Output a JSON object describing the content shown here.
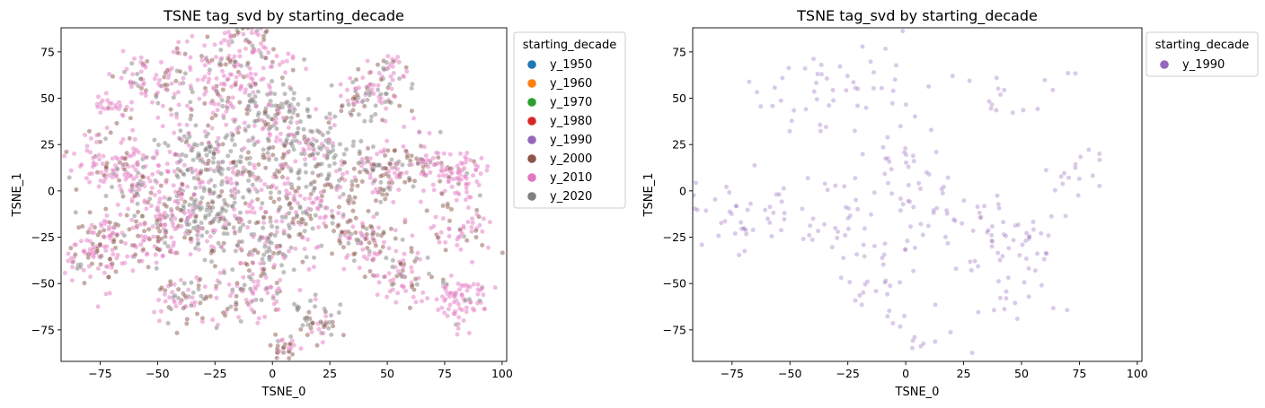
{
  "chart_data": [
    {
      "type": "scatter",
      "title": "TSNE tag_svd by starting_decade",
      "xlabel": "TSNE_0",
      "ylabel": "TSNE_1",
      "xlim": [
        -92,
        102
      ],
      "ylim": [
        -92,
        88
      ],
      "xticks": [
        -75,
        -50,
        -25,
        0,
        25,
        50,
        75,
        100
      ],
      "yticks": [
        -75,
        -50,
        -25,
        0,
        25,
        50,
        75
      ],
      "xtick_labels": [
        "−75",
        "−50",
        "−25",
        "0",
        "25",
        "50",
        "75",
        "100"
      ],
      "ytick_labels": [
        "−75",
        "−50",
        "−25",
        "0",
        "25",
        "50",
        "75"
      ],
      "grid": false,
      "legend": {
        "title": "starting_decade",
        "placement": "outside-upper-right",
        "entries": [
          {
            "name": "y_1950",
            "color": "#1f77b4"
          },
          {
            "name": "y_1960",
            "color": "#ff7f0e"
          },
          {
            "name": "y_1970",
            "color": "#2ca02c"
          },
          {
            "name": "y_1980",
            "color": "#d62728"
          },
          {
            "name": "y_1990",
            "color": "#9467bd"
          },
          {
            "name": "y_2000",
            "color": "#8c564b"
          },
          {
            "name": "y_2010",
            "color": "#e377c2"
          },
          {
            "name": "y_2020",
            "color": "#7f7f7f"
          }
        ]
      },
      "clusters": [
        {
          "x": -25,
          "y": 55,
          "sd": 14,
          "n": 160,
          "mix": {
            "y_2010": 0.55,
            "y_2000": 0.25,
            "y_2020": 0.2
          }
        },
        {
          "x": -10,
          "y": 75,
          "sd": 8,
          "n": 80,
          "mix": {
            "y_2010": 0.6,
            "y_2000": 0.25,
            "y_2020": 0.15
          }
        },
        {
          "x": -55,
          "y": 60,
          "sd": 7,
          "n": 60,
          "mix": {
            "y_2010": 0.6,
            "y_2000": 0.2,
            "y_2020": 0.2
          }
        },
        {
          "x": -72,
          "y": 45,
          "sd": 5,
          "n": 25,
          "mix": {
            "y_2010": 0.7,
            "y_2000": 0.3
          }
        },
        {
          "x": 0,
          "y": 40,
          "sd": 10,
          "n": 120,
          "mix": {
            "y_2020": 0.6,
            "y_2010": 0.25,
            "y_2000": 0.15
          }
        },
        {
          "x": -30,
          "y": 20,
          "sd": 10,
          "n": 130,
          "mix": {
            "y_2020": 0.6,
            "y_2010": 0.25,
            "y_2000": 0.15
          }
        },
        {
          "x": 18,
          "y": 22,
          "sd": 9,
          "n": 110,
          "mix": {
            "y_2020": 0.55,
            "y_2010": 0.3,
            "y_2000": 0.15
          }
        },
        {
          "x": -25,
          "y": -15,
          "sd": 10,
          "n": 150,
          "mix": {
            "y_2020": 0.65,
            "y_2010": 0.2,
            "y_2000": 0.15
          }
        },
        {
          "x": -70,
          "y": 15,
          "sd": 9,
          "n": 110,
          "mix": {
            "y_2010": 0.65,
            "y_2000": 0.25,
            "y_2020": 0.1
          }
        },
        {
          "x": -50,
          "y": 0,
          "sd": 10,
          "n": 120,
          "mix": {
            "y_2010": 0.55,
            "y_2000": 0.2,
            "y_2020": 0.25
          }
        },
        {
          "x": -72,
          "y": -30,
          "sd": 10,
          "n": 150,
          "mix": {
            "y_2010": 0.55,
            "y_2000": 0.35,
            "y_2020": 0.1
          }
        },
        {
          "x": -45,
          "y": -25,
          "sd": 8,
          "n": 70,
          "mix": {
            "y_2010": 0.55,
            "y_2000": 0.3,
            "y_2020": 0.15
          }
        },
        {
          "x": -40,
          "y": -58,
          "sd": 7,
          "n": 60,
          "mix": {
            "y_2000": 0.4,
            "y_2020": 0.35,
            "y_2010": 0.25
          }
        },
        {
          "x": -10,
          "y": -55,
          "sd": 9,
          "n": 90,
          "mix": {
            "y_2010": 0.5,
            "y_2000": 0.3,
            "y_2020": 0.2
          }
        },
        {
          "x": 0,
          "y": -30,
          "sd": 9,
          "n": 100,
          "mix": {
            "y_2020": 0.45,
            "y_2010": 0.35,
            "y_2000": 0.2
          }
        },
        {
          "x": 20,
          "y": -70,
          "sd": 6,
          "n": 50,
          "mix": {
            "y_2020": 0.45,
            "y_2010": 0.3,
            "y_2000": 0.25
          }
        },
        {
          "x": 5,
          "y": -85,
          "sd": 3,
          "n": 25,
          "mix": {
            "y_2000": 0.7,
            "y_2010": 0.3
          }
        },
        {
          "x": 20,
          "y": -10,
          "sd": 9,
          "n": 90,
          "mix": {
            "y_2010": 0.45,
            "y_2000": 0.3,
            "y_2020": 0.25
          }
        },
        {
          "x": 42,
          "y": 50,
          "sd": 8,
          "n": 80,
          "mix": {
            "y_2020": 0.4,
            "y_2010": 0.35,
            "y_2000": 0.25
          }
        },
        {
          "x": 50,
          "y": 65,
          "sd": 5,
          "n": 30,
          "mix": {
            "y_2010": 0.5,
            "y_2020": 0.3,
            "y_2000": 0.2
          }
        },
        {
          "x": 45,
          "y": 10,
          "sd": 9,
          "n": 100,
          "mix": {
            "y_2000": 0.45,
            "y_2010": 0.35,
            "y_2020": 0.2
          }
        },
        {
          "x": 38,
          "y": -25,
          "sd": 8,
          "n": 80,
          "mix": {
            "y_2000": 0.45,
            "y_2010": 0.4,
            "y_2020": 0.15
          }
        },
        {
          "x": 55,
          "y": -45,
          "sd": 8,
          "n": 70,
          "mix": {
            "y_2010": 0.5,
            "y_2000": 0.4,
            "y_2020": 0.1
          }
        },
        {
          "x": 65,
          "y": 15,
          "sd": 8,
          "n": 70,
          "mix": {
            "y_2010": 0.55,
            "y_2000": 0.3,
            "y_2020": 0.15
          }
        },
        {
          "x": 82,
          "y": 10,
          "sd": 6,
          "n": 70,
          "mix": {
            "y_2010": 0.85,
            "y_2000": 0.1,
            "y_2020": 0.05
          }
        },
        {
          "x": 82,
          "y": -20,
          "sd": 7,
          "n": 55,
          "mix": {
            "y_2010": 0.6,
            "y_2000": 0.3,
            "y_2020": 0.1
          }
        },
        {
          "x": 82,
          "y": -60,
          "sd": 6,
          "n": 80,
          "mix": {
            "y_2010": 0.9,
            "y_2020": 0.1
          }
        },
        {
          "x": -5,
          "y": 5,
          "sd": 12,
          "n": 120,
          "mix": {
            "y_2010": 0.4,
            "y_2000": 0.3,
            "y_2020": 0.3
          }
        }
      ]
    },
    {
      "type": "scatter",
      "title": "TSNE tag_svd by starting_decade",
      "xlabel": "TSNE_0",
      "ylabel": "TSNE_1",
      "xlim": [
        -92,
        102
      ],
      "ylim": [
        -92,
        88
      ],
      "xticks": [
        -75,
        -50,
        -25,
        0,
        25,
        50,
        75,
        100
      ],
      "yticks": [
        -75,
        -50,
        -25,
        0,
        25,
        50,
        75
      ],
      "xtick_labels": [
        "−75",
        "−50",
        "−25",
        "0",
        "25",
        "50",
        "75",
        "100"
      ],
      "ytick_labels": [
        "−75",
        "−50",
        "−25",
        "0",
        "25",
        "50",
        "75"
      ],
      "grid": false,
      "legend": {
        "title": "starting_decade",
        "placement": "outside-upper-right",
        "entries": [
          {
            "name": "y_1990",
            "color": "#9467bd"
          }
        ]
      },
      "clusters": [
        {
          "x": -20,
          "y": 55,
          "sd": 14,
          "n": 40,
          "mix": {
            "y_1990": 1
          }
        },
        {
          "x": -55,
          "y": 50,
          "sd": 8,
          "n": 12,
          "mix": {
            "y_1990": 1
          }
        },
        {
          "x": 50,
          "y": 55,
          "sd": 10,
          "n": 16,
          "mix": {
            "y_1990": 1
          }
        },
        {
          "x": -72,
          "y": -15,
          "sd": 12,
          "n": 40,
          "mix": {
            "y_1990": 1
          }
        },
        {
          "x": -30,
          "y": -15,
          "sd": 12,
          "n": 35,
          "mix": {
            "y_1990": 1
          }
        },
        {
          "x": 0,
          "y": 15,
          "sd": 12,
          "n": 25,
          "mix": {
            "y_1990": 1
          }
        },
        {
          "x": 20,
          "y": -15,
          "sd": 12,
          "n": 35,
          "mix": {
            "y_1990": 1
          }
        },
        {
          "x": 50,
          "y": -25,
          "sd": 12,
          "n": 40,
          "mix": {
            "y_1990": 1
          }
        },
        {
          "x": 80,
          "y": 10,
          "sd": 8,
          "n": 15,
          "mix": {
            "y_1990": 1
          }
        },
        {
          "x": -10,
          "y": -50,
          "sd": 12,
          "n": 30,
          "mix": {
            "y_1990": 1
          }
        },
        {
          "x": 40,
          "y": -55,
          "sd": 12,
          "n": 20,
          "mix": {
            "y_1990": 1
          }
        },
        {
          "x": 5,
          "y": -85,
          "sd": 4,
          "n": 5,
          "mix": {
            "y_1990": 1
          }
        }
      ]
    }
  ]
}
